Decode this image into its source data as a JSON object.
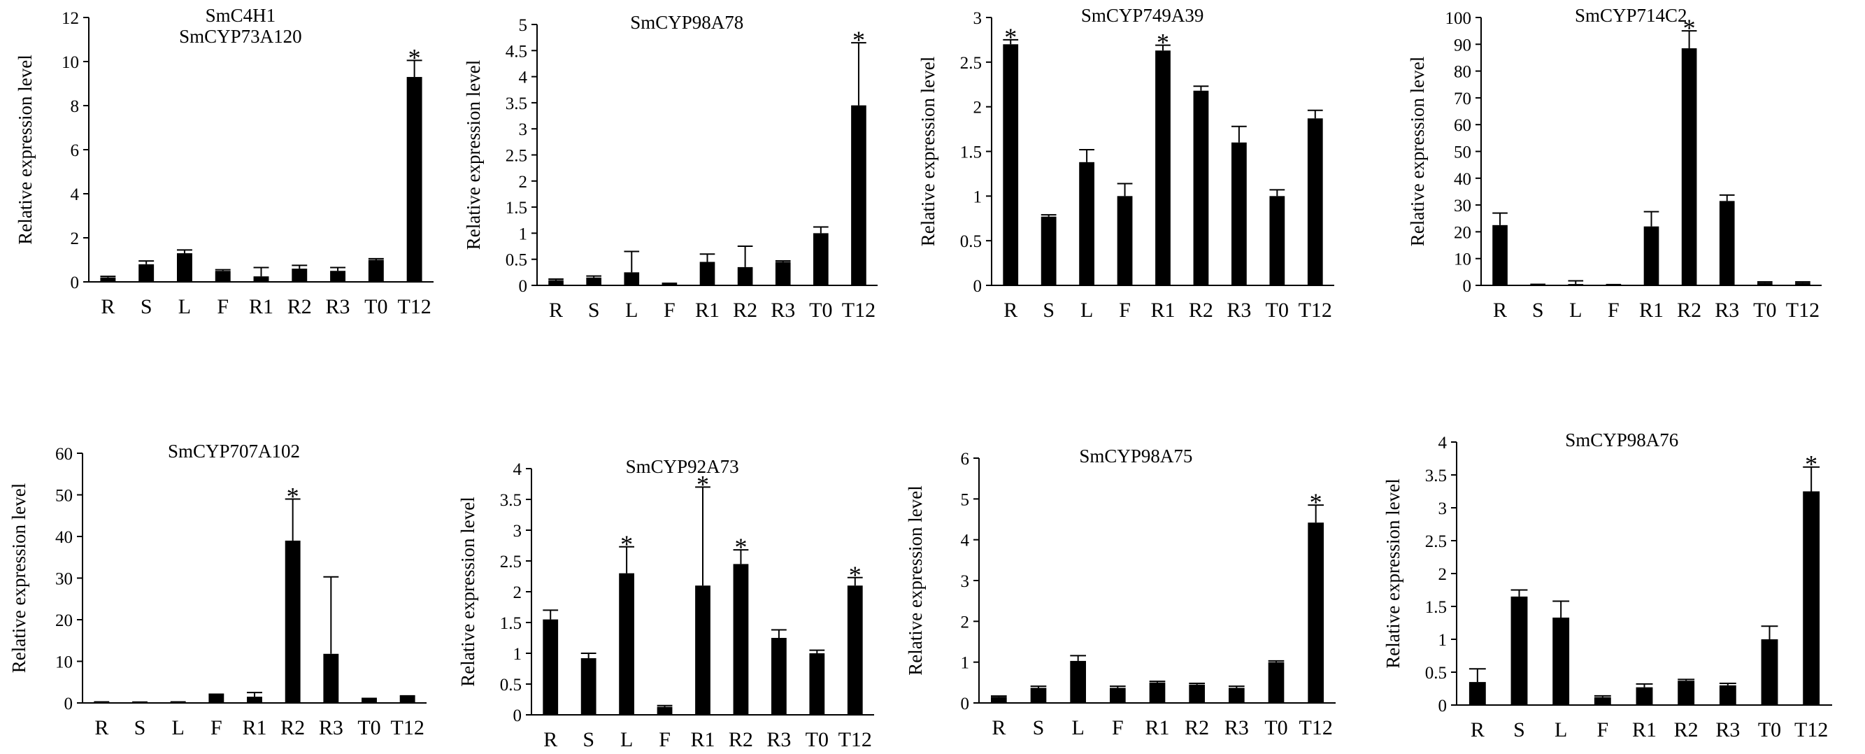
{
  "figure": {
    "ylabel": "Relative  expression  level"
  },
  "colors": {
    "bar": "#000000",
    "axis": "#000000",
    "background": "#ffffff"
  },
  "chart_data": [
    {
      "type": "bar",
      "title": [
        "SmC4H1",
        "SmCYP73A120"
      ],
      "ylabel": "Relative  expression  level",
      "categories": [
        "R",
        "S",
        "L",
        "F",
        "R1",
        "R2",
        "R3",
        "T0",
        "T12"
      ],
      "values": [
        0.2,
        0.8,
        1.3,
        0.5,
        0.25,
        0.6,
        0.5,
        1.0,
        9.3
      ],
      "errors": [
        0.05,
        0.15,
        0.15,
        0.05,
        0.4,
        0.15,
        0.15,
        0.05,
        0.75
      ],
      "significant": [
        false,
        false,
        false,
        false,
        false,
        false,
        false,
        false,
        true
      ],
      "ylim": [
        0,
        12
      ],
      "yticks": [
        0,
        2,
        4,
        6,
        8,
        10,
        12
      ],
      "ytick_labels": [
        "0",
        "2",
        "4",
        "6",
        "8",
        "10",
        "12"
      ]
    },
    {
      "type": "bar",
      "title": [
        "SmCYP98A78"
      ],
      "ylabel": "Relative  expression  level",
      "categories": [
        "R",
        "S",
        "L",
        "F",
        "R1",
        "R2",
        "R3",
        "T0",
        "T12"
      ],
      "values": [
        0.1,
        0.15,
        0.25,
        0.03,
        0.45,
        0.35,
        0.45,
        1.0,
        3.45
      ],
      "errors": [
        0.02,
        0.03,
        0.4,
        0.01,
        0.15,
        0.4,
        0.02,
        0.12,
        1.2
      ],
      "significant": [
        false,
        false,
        false,
        false,
        false,
        false,
        false,
        false,
        true
      ],
      "ylim": [
        0,
        5
      ],
      "yticks": [
        0,
        0.5,
        1,
        1.5,
        2,
        2.5,
        3,
        3.5,
        4,
        4.5,
        5
      ],
      "ytick_labels": [
        "0",
        "0.5",
        "1",
        "1.5",
        "2",
        "2.5",
        "3",
        "3.5",
        "4",
        "4.5",
        "5"
      ]
    },
    {
      "type": "bar",
      "title": [
        "SmCYP749A39"
      ],
      "ylabel": "Relative  expression  level",
      "categories": [
        "R",
        "S",
        "L",
        "F",
        "R1",
        "R2",
        "R3",
        "T0",
        "T12"
      ],
      "values": [
        2.7,
        0.77,
        1.38,
        1.0,
        2.63,
        2.18,
        1.6,
        1.0,
        1.87
      ],
      "errors": [
        0.05,
        0.02,
        0.14,
        0.14,
        0.06,
        0.05,
        0.18,
        0.07,
        0.09
      ],
      "significant": [
        true,
        false,
        false,
        false,
        true,
        false,
        false,
        false,
        false
      ],
      "ylim": [
        0,
        3
      ],
      "yticks": [
        0,
        0.5,
        1,
        1.5,
        2,
        2.5,
        3
      ],
      "ytick_labels": [
        "0",
        "0.5",
        "1",
        "1.5",
        "2",
        "2.5",
        "3"
      ]
    },
    {
      "type": "bar",
      "title": [
        "SmCYP714C2"
      ],
      "ylabel": "Relative  expression  level",
      "categories": [
        "R",
        "S",
        "L",
        "F",
        "R1",
        "R2",
        "R3",
        "T0",
        "T12"
      ],
      "values": [
        22.5,
        0.3,
        0.5,
        0.2,
        22,
        88.5,
        31.5,
        1,
        1
      ],
      "errors": [
        4.5,
        0.1,
        1.2,
        0.1,
        5.5,
        6.5,
        2.2,
        0.3,
        0.3
      ],
      "significant": [
        false,
        false,
        false,
        false,
        false,
        true,
        false,
        false,
        false
      ],
      "ylim": [
        0,
        100
      ],
      "yticks": [
        0,
        10,
        20,
        30,
        40,
        50,
        60,
        70,
        80,
        90,
        100
      ],
      "ytick_labels": [
        "0",
        "10",
        "20",
        "30",
        "40",
        "50",
        "60",
        "70",
        "80",
        "90",
        "100"
      ]
    },
    {
      "type": "bar",
      "title": [
        "SmCYP707A102"
      ],
      "ylabel": "Relative  expression  level",
      "categories": [
        "R",
        "S",
        "L",
        "F",
        "R1",
        "R2",
        "R3",
        "T0",
        "T12"
      ],
      "values": [
        0.2,
        0.15,
        0.2,
        2.0,
        1.5,
        39,
        11.8,
        1.0,
        1.6
      ],
      "errors": [
        0.05,
        0.05,
        0.05,
        0.1,
        1.0,
        10,
        18.5,
        0.1,
        0.1
      ],
      "significant": [
        false,
        false,
        false,
        false,
        false,
        true,
        false,
        false,
        false
      ],
      "ylim": [
        0,
        60
      ],
      "yticks": [
        0,
        10,
        20,
        30,
        40,
        50,
        60
      ],
      "ytick_labels": [
        "0",
        "10",
        "20",
        "30",
        "40",
        "50",
        "60"
      ]
    },
    {
      "type": "bar",
      "title": [
        "SmCYP92A73"
      ],
      "ylabel": "Relative  expression  level",
      "categories": [
        "R",
        "S",
        "L",
        "F",
        "R1",
        "R2",
        "R3",
        "T0",
        "T12"
      ],
      "values": [
        1.55,
        0.92,
        2.3,
        0.13,
        2.1,
        2.45,
        1.25,
        1.0,
        2.1
      ],
      "errors": [
        0.15,
        0.08,
        0.43,
        0.02,
        1.6,
        0.23,
        0.13,
        0.05,
        0.13
      ],
      "significant": [
        false,
        false,
        true,
        false,
        true,
        true,
        false,
        false,
        true
      ],
      "ylim": [
        0,
        4
      ],
      "yticks": [
        0,
        0.5,
        1,
        1.5,
        2,
        2.5,
        3,
        3.5,
        4
      ],
      "ytick_labels": [
        "0",
        "0.5",
        "1",
        "1.5",
        "2",
        "2.5",
        "3",
        "3.5",
        "4"
      ]
    },
    {
      "type": "bar",
      "title": [
        "SmCYP98A75"
      ],
      "ylabel": "Relative  expression  level",
      "categories": [
        "R",
        "S",
        "L",
        "F",
        "R1",
        "R2",
        "R3",
        "T0",
        "T12"
      ],
      "values": [
        0.15,
        0.37,
        1.03,
        0.37,
        0.5,
        0.45,
        0.37,
        1.0,
        4.42
      ],
      "errors": [
        0.02,
        0.04,
        0.13,
        0.04,
        0.03,
        0.03,
        0.04,
        0.03,
        0.43
      ],
      "significant": [
        false,
        false,
        false,
        false,
        false,
        false,
        false,
        false,
        true
      ],
      "ylim": [
        0,
        6
      ],
      "yticks": [
        0,
        1,
        2,
        3,
        4,
        5,
        6
      ],
      "ytick_labels": [
        "0",
        "1",
        "2",
        "3",
        "4",
        "5",
        "6"
      ]
    },
    {
      "type": "bar",
      "title": [
        "SmCYP98A76"
      ],
      "ylabel": "Relative  expression  level",
      "categories": [
        "R",
        "S",
        "L",
        "F",
        "R1",
        "R2",
        "R3",
        "T0",
        "T12"
      ],
      "values": [
        0.35,
        1.65,
        1.33,
        0.12,
        0.27,
        0.37,
        0.3,
        1.0,
        3.25
      ],
      "errors": [
        0.2,
        0.1,
        0.25,
        0.02,
        0.05,
        0.02,
        0.03,
        0.2,
        0.37
      ],
      "significant": [
        false,
        false,
        false,
        false,
        false,
        false,
        false,
        false,
        true
      ],
      "ylim": [
        0,
        4
      ],
      "yticks": [
        0,
        0.5,
        1,
        1.5,
        2,
        2.5,
        3,
        3.5,
        4
      ],
      "ytick_labels": [
        "0",
        "0.5",
        "1",
        "1.5",
        "2",
        "2.5",
        "3",
        "3.5",
        "4"
      ]
    }
  ]
}
